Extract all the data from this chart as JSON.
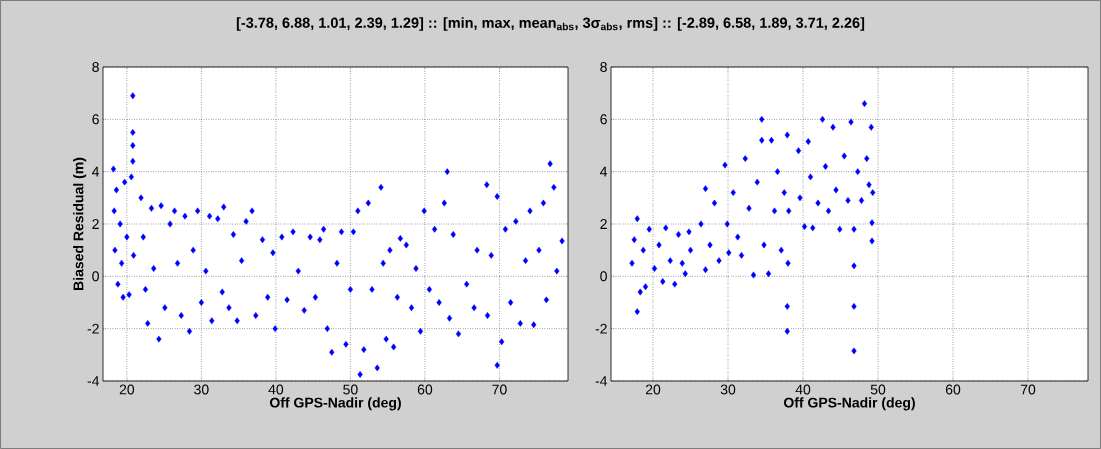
{
  "chart_data": [
    {
      "type": "scatter",
      "title": "[-3.78, 6.88, 1.01, 2.39, 1.29]  ::  [min, max, mean$_{abs}$, 3σ$_{abs}$, rms]  ::  [-2.89, 6.58, 1.89, 3.71, 2.26]",
      "xlabel": "Off GPS-Nadir (deg)",
      "ylabel": "Biased Residual (m)",
      "color": "#0000ff",
      "marker": "diamond",
      "grid": true,
      "xlim": [
        16.8,
        79.2
      ],
      "ylim": [
        -4,
        8
      ],
      "xticks": [
        20,
        30,
        40,
        50,
        60,
        70
      ],
      "yticks": [
        -4,
        -2,
        0,
        2,
        4,
        6,
        8
      ],
      "x": [
        18.2,
        18.3,
        18.4,
        18.6,
        18.8,
        19.1,
        19.3,
        19.5,
        19.7,
        20.0,
        20.3,
        20.6,
        20.8,
        20.8,
        20.8,
        20.8,
        20.9,
        21.9,
        22.2,
        22.5,
        22.8,
        23.3,
        23.6,
        24.3,
        24.6,
        25.1,
        25.8,
        26.4,
        26.8,
        27.3,
        27.8,
        28.4,
        28.9,
        29.5,
        30.0,
        30.6,
        31.1,
        31.4,
        32.2,
        32.8,
        33.0,
        33.7,
        34.3,
        34.8,
        35.4,
        36.0,
        36.8,
        37.3,
        38.2,
        38.9,
        39.6,
        39.9,
        40.8,
        41.5,
        42.3,
        43.0,
        43.8,
        44.6,
        45.3,
        45.9,
        46.4,
        46.9,
        47.5,
        48.2,
        48.8,
        49.4,
        50.0,
        50.4,
        51.0,
        51.3,
        51.8,
        52.4,
        52.9,
        53.6,
        54.1,
        54.4,
        54.8,
        55.3,
        55.8,
        56.3,
        56.7,
        57.5,
        58.2,
        58.8,
        59.4,
        59.9,
        60.6,
        61.3,
        61.9,
        62.6,
        63.0,
        63.3,
        63.8,
        64.5,
        65.6,
        66.6,
        67.0,
        68.3,
        68.4,
        68.9,
        69.7,
        69.7,
        70.3,
        70.8,
        71.5,
        72.2,
        72.8,
        73.5,
        74.1,
        74.6,
        75.3,
        75.9,
        76.3,
        76.8,
        77.3,
        77.7,
        78.4
      ],
      "values": [
        4.1,
        2.5,
        1.0,
        3.3,
        -0.3,
        2.0,
        0.5,
        -0.8,
        3.6,
        1.5,
        -0.7,
        3.8,
        6.9,
        5.5,
        5.0,
        4.4,
        0.8,
        3.0,
        1.5,
        -0.5,
        -1.8,
        2.6,
        0.3,
        -2.4,
        2.7,
        -1.2,
        2.0,
        2.5,
        0.5,
        -1.5,
        2.3,
        -2.1,
        1.0,
        2.5,
        -1.0,
        0.2,
        2.3,
        -1.7,
        2.2,
        -0.6,
        2.65,
        -1.2,
        1.6,
        -1.7,
        0.6,
        2.1,
        2.5,
        -1.5,
        1.4,
        -0.8,
        0.9,
        -2.0,
        1.5,
        -0.9,
        1.7,
        0.2,
        -1.3,
        1.5,
        -0.8,
        1.4,
        1.8,
        -2.0,
        -2.9,
        0.5,
        1.7,
        -2.6,
        -0.5,
        1.7,
        2.5,
        -3.75,
        -2.8,
        2.8,
        -0.5,
        -3.5,
        3.4,
        0.5,
        -2.4,
        1.0,
        -2.7,
        -0.8,
        1.45,
        1.2,
        -1.2,
        0.3,
        -2.1,
        2.5,
        -0.5,
        1.8,
        -1.0,
        2.8,
        4.0,
        -1.6,
        1.6,
        -2.2,
        -0.3,
        -1.2,
        1.0,
        3.5,
        -1.5,
        0.8,
        3.05,
        -3.4,
        -2.5,
        1.8,
        -1.0,
        2.1,
        -1.8,
        0.6,
        2.5,
        -1.85,
        1.0,
        2.8,
        -0.9,
        4.3,
        3.4,
        0.2,
        1.35
      ]
    },
    {
      "type": "scatter",
      "xlabel": "Off GPS-Nadir (deg)",
      "color": "#0000ff",
      "marker": "diamond",
      "grid": true,
      "xlim": [
        14.4,
        78
      ],
      "ylim": [
        -4,
        8
      ],
      "xticks": [
        20,
        30,
        40,
        50,
        60,
        70
      ],
      "yticks": [
        -4,
        -2,
        0,
        2,
        4,
        6,
        8
      ],
      "x": [
        17.2,
        17.5,
        17.9,
        17.9,
        18.3,
        18.7,
        19.0,
        19.5,
        20.2,
        20.8,
        21.3,
        21.7,
        22.3,
        22.9,
        23.4,
        23.9,
        24.3,
        24.8,
        25.0,
        26.4,
        27.0,
        27.0,
        27.6,
        28.2,
        28.8,
        29.6,
        29.9,
        30.1,
        30.7,
        31.3,
        31.8,
        32.3,
        32.8,
        33.4,
        33.9,
        34.5,
        34.5,
        34.8,
        35.4,
        35.8,
        36.2,
        36.6,
        37.1,
        37.5,
        37.9,
        37.9,
        37.9,
        38.0,
        38.1,
        39.4,
        39.6,
        40.2,
        40.7,
        41.0,
        41.3,
        42.0,
        42.6,
        43.0,
        43.4,
        44.0,
        44.4,
        44.9,
        45.5,
        46.0,
        46.4,
        46.8,
        46.8,
        46.8,
        46.8,
        47.3,
        47.8,
        48.2,
        48.5,
        48.8,
        49.1,
        49.2,
        49.2,
        49.3
      ],
      "values": [
        0.5,
        1.4,
        2.2,
        -1.35,
        -0.6,
        1.0,
        -0.4,
        1.8,
        0.3,
        1.2,
        -0.2,
        1.85,
        0.6,
        -0.3,
        1.6,
        0.5,
        0.1,
        1.7,
        1.0,
        2.0,
        3.35,
        0.25,
        1.2,
        2.8,
        0.6,
        4.25,
        2.0,
        0.9,
        3.2,
        1.5,
        0.8,
        4.5,
        2.6,
        0.05,
        3.6,
        6.0,
        5.2,
        1.2,
        0.1,
        5.2,
        2.5,
        4.0,
        1.0,
        3.2,
        5.4,
        -1.15,
        -2.1,
        0.5,
        2.5,
        4.8,
        3.0,
        1.9,
        5.15,
        3.8,
        1.85,
        2.8,
        6.0,
        4.2,
        2.5,
        5.7,
        3.3,
        1.8,
        4.6,
        2.9,
        5.9,
        1.8,
        0.4,
        -1.15,
        -2.85,
        4.0,
        2.9,
        6.6,
        4.5,
        3.5,
        5.7,
        2.05,
        1.35,
        3.2
      ]
    }
  ]
}
